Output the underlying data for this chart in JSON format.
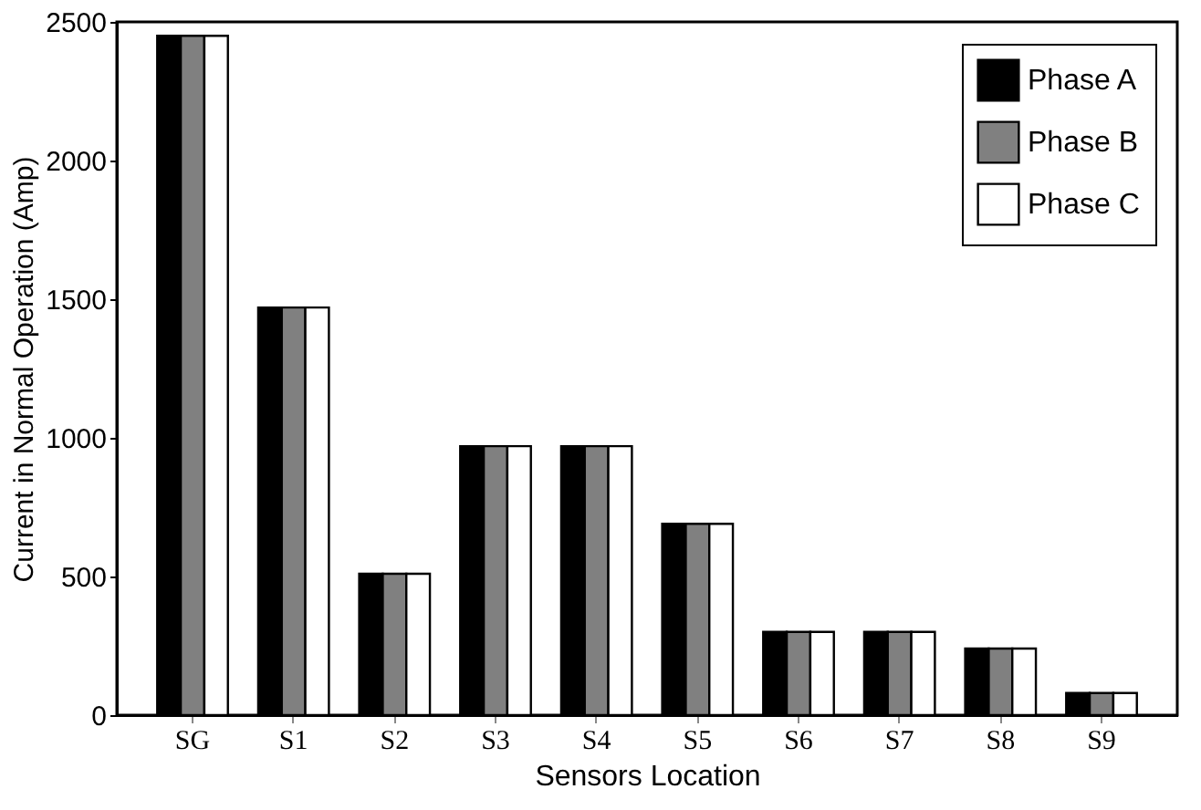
{
  "chart_data": {
    "type": "bar",
    "xlabel": "Sensors Location",
    "ylabel": "Current in Normal Operation (Amp)",
    "categories": [
      "SG",
      "S1",
      "S2",
      "S3",
      "S4",
      "S5",
      "S6",
      "S7",
      "S8",
      "S9"
    ],
    "series": [
      {
        "name": "Phase A",
        "color": "#000000",
        "values": [
          2450,
          1470,
          510,
          970,
          970,
          690,
          300,
          300,
          240,
          80
        ]
      },
      {
        "name": "Phase B",
        "color": "#808080",
        "values": [
          2450,
          1470,
          510,
          970,
          970,
          690,
          300,
          300,
          240,
          80
        ]
      },
      {
        "name": "Phase C",
        "color": "#ffffff",
        "values": [
          2450,
          1470,
          510,
          970,
          970,
          690,
          300,
          300,
          240,
          80
        ]
      }
    ],
    "ylim": [
      0,
      2500
    ],
    "yticks": [
      0,
      500,
      1000,
      1500,
      2000,
      2500
    ],
    "grid": false,
    "legend": "top right"
  }
}
